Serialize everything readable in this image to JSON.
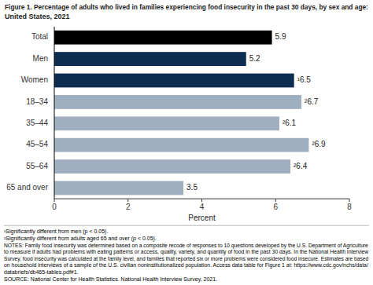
{
  "chart_data": {
    "type": "bar",
    "orientation": "horizontal",
    "title": "Figure 1. Percentage of adults who lived in families experiencing food insecurity in the past 30 days, by sex and age:",
    "subtitle": "United States, 2021",
    "categories": [
      "65 and over",
      "55–64",
      "45–54",
      "35–44",
      "18–34",
      "Women",
      "Men",
      "Total"
    ],
    "values": [
      3.5,
      6.4,
      6.9,
      6.1,
      6.7,
      6.5,
      5.2,
      5.9
    ],
    "value_labels": [
      "3.5",
      "²6.4",
      "²6.9",
      "²6.1",
      "²6.7",
      "¹6.5",
      "5.2",
      "5.9"
    ],
    "data_labels": true,
    "colors": [
      "#a0afc0",
      "#a0afc0",
      "#a0afc0",
      "#a0afc0",
      "#a0afc0",
      "#0d2d50",
      "#0d2d50",
      "#000000"
    ],
    "xlabel": "Percent",
    "xlim": [
      0,
      8
    ],
    "xticks": [
      0,
      2,
      4,
      6,
      8
    ],
    "grid": false,
    "annotations": [
      "¹Significantly different from men (p < 0.05).",
      "²Significantly different from adults aged 65 and over (p < 0.05).",
      "NOTES: Family food insecurity was determined based on a composite recode of responses to 10 questions developed by the U.S. Department of Agriculture",
      "to measure if adults had problems with eating patterns or access, quality, variety, and quantity of food in the past 30 days. In the National Health Interview",
      "Survey, food insecurity was calculated at the family level, and families that reported six or more problems were considered food insecure. Estimates are based",
      "on household interviews of a sample of the U.S. civilian noninstitutionalized population. Access data table for Figure 1 at: https://www.cdc.gov/nchs/data/",
      "databriefs/db465-tables.pdf#1.",
      "SOURCE: National Center for Health Statistics. National Health Interview Survey, 2021."
    ]
  }
}
